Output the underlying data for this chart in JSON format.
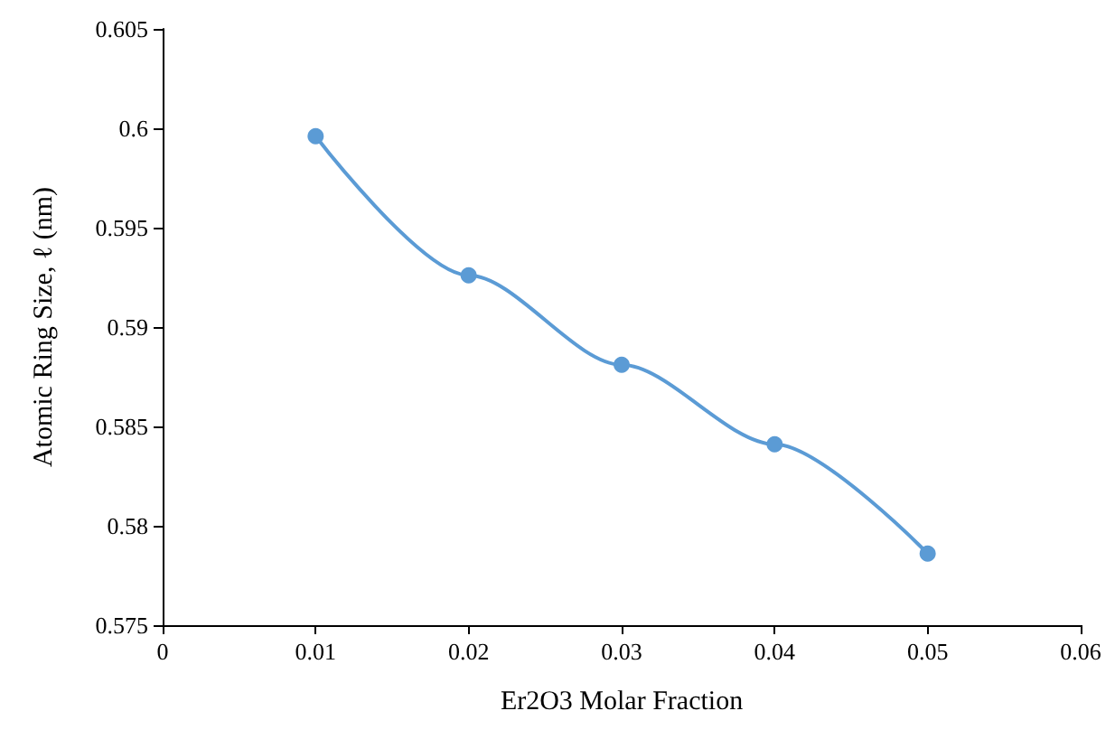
{
  "chart_data": {
    "type": "line",
    "xlabel": "Er2O3 Molar Fraction",
    "ylabel": "Atomic Ring Size, ℓ (nm)",
    "x": [
      0.01,
      0.02,
      0.03,
      0.04,
      0.05
    ],
    "series": [
      {
        "color": "#5b9bd5",
        "values": [
          0.5996,
          0.5926,
          0.5881,
          0.5841,
          0.5786
        ]
      }
    ],
    "xlim": [
      0,
      0.06
    ],
    "xticks": [
      0,
      0.01,
      0.02,
      0.03,
      0.04,
      0.05,
      0.06
    ],
    "ylim": [
      0.575,
      0.605
    ],
    "yticks": [
      0.575,
      0.58,
      0.585,
      0.59,
      0.595,
      0.6,
      0.605
    ],
    "marker": "circle",
    "line_style": "solid"
  }
}
